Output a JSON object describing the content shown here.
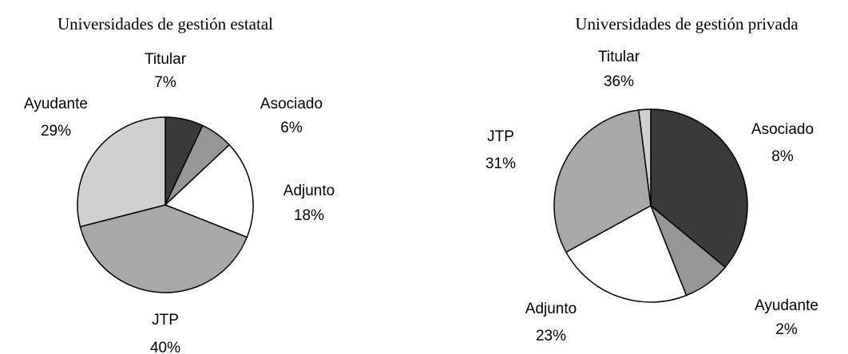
{
  "chart_data": [
    {
      "type": "pie",
      "title": "Universidades de gestión estatal",
      "categories": [
        "Titular",
        "Asociado",
        "Adjunto",
        "JTP",
        "Ayudante"
      ],
      "values": [
        7,
        6,
        18,
        40,
        29
      ],
      "value_labels": [
        "7%",
        "6%",
        "18%",
        "40%",
        "29%"
      ],
      "colors": [
        "#3a3a3a",
        "#969696",
        "#ffffff",
        "#a8a8a8",
        "#d0d0d0"
      ]
    },
    {
      "type": "pie",
      "title": "Universidades de gestión privada",
      "categories": [
        "Titular",
        "Asociado",
        "Adjunto",
        "JTP",
        "Ayudante"
      ],
      "values": [
        36,
        8,
        23,
        31,
        2
      ],
      "value_labels": [
        "36%",
        "8%",
        "23%",
        "31%",
        "2%"
      ],
      "colors": [
        "#3a3a3a",
        "#969696",
        "#ffffff",
        "#a8a8a8",
        "#d0d0d0"
      ]
    }
  ]
}
